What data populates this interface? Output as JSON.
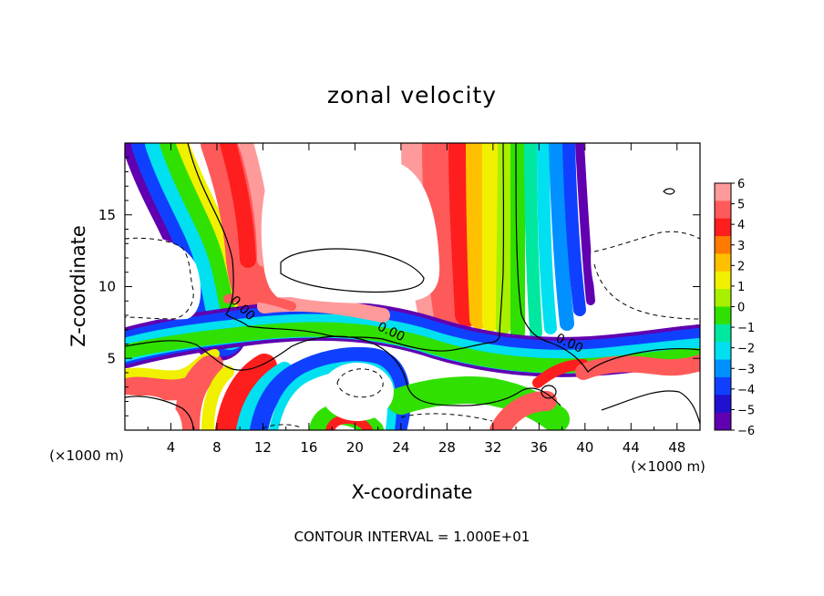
{
  "chart_data": {
    "type": "heatmap",
    "title": "zonal velocity",
    "xlabel": "X-coordinate",
    "ylabel": "Z-coordinate",
    "x_units_left": "(×1000 m)",
    "x_units_right": "(×1000 m)",
    "footer": "CONTOUR INTERVAL = 1.000E+01",
    "xlim": [
      0,
      50
    ],
    "ylim": [
      0,
      20
    ],
    "x_ticks": [
      4,
      8,
      12,
      16,
      20,
      24,
      28,
      32,
      36,
      40,
      44,
      48
    ],
    "x_tick_labels": [
      "4",
      "8",
      "12",
      "16",
      "20",
      "24",
      "28",
      "32",
      "36",
      "40",
      "44",
      "48"
    ],
    "y_ticks": [
      5,
      10,
      15
    ],
    "y_tick_labels": [
      "5",
      "10",
      "15"
    ],
    "colorbar": {
      "levels": [
        6,
        5,
        4,
        3,
        2,
        1,
        0,
        -1,
        -2,
        -3,
        -4,
        -5,
        -6
      ],
      "labels": [
        "6",
        "5",
        "4",
        "3",
        "2",
        "1",
        "0",
        "−1",
        "−2",
        "−3",
        "−4",
        "−5",
        "−6"
      ],
      "colors": [
        "#ff9a9a",
        "#ff5a5a",
        "#ff1e1e",
        "#ff7a00",
        "#ffc000",
        "#f0f000",
        "#a8f000",
        "#30e000",
        "#00e8a0",
        "#00e0f0",
        "#0090ff",
        "#1040ff",
        "#2010d0",
        "#6000b0"
      ]
    },
    "contour_labels": [
      {
        "text": "0.00",
        "x": 10,
        "z": 8.3
      },
      {
        "text": "0.00",
        "x": 23,
        "z": 6.6
      },
      {
        "text": "0.00",
        "x": 38.5,
        "z": 5.8
      }
    ]
  }
}
